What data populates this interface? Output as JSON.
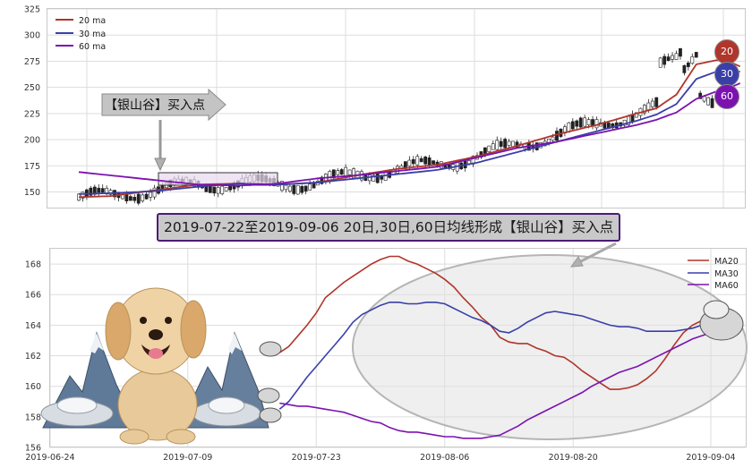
{
  "colors": {
    "ma20": "#b0352a",
    "ma30": "#3a3fa8",
    "ma60": "#7b12b0",
    "up": "#ffffff",
    "down": "#222222",
    "grid": "#dddddd"
  },
  "top": {
    "legend": [
      "20 ma",
      "30 ma",
      "60 ma"
    ],
    "ylim": [
      135,
      325
    ],
    "yticks": [
      150,
      175,
      200,
      225,
      250,
      275,
      300,
      325
    ],
    "callout_label": "【银山谷】买入点",
    "badges": [
      "20",
      "30",
      "60"
    ]
  },
  "banner": "2019-07-22至2019-09-06 20日,30日,60日均线形成【银山谷】买入点",
  "chart_data": [
    {
      "type": "line",
      "panel": "price_ma",
      "n_bars": 160,
      "ylim": [
        135,
        325
      ],
      "legend_placement": "top-left",
      "grid": true,
      "series": [
        {
          "name": "20 ma",
          "anchors": [
            [
              0,
              145
            ],
            [
              8,
              146
            ],
            [
              20,
              152
            ],
            [
              30,
              157
            ],
            [
              40,
              158
            ],
            [
              50,
              157
            ],
            [
              60,
              159
            ],
            [
              70,
              166
            ],
            [
              80,
              172
            ],
            [
              90,
              176
            ],
            [
              100,
              184
            ],
            [
              110,
              194
            ],
            [
              120,
              205
            ],
            [
              130,
              214
            ],
            [
              140,
              225
            ],
            [
              145,
              230
            ],
            [
              150,
              243
            ],
            [
              155,
              272
            ],
            [
              160,
              276
            ],
            [
              163,
              275
            ],
            [
              166,
              270
            ]
          ]
        },
        {
          "name": "30 ma",
          "anchors": [
            [
              0,
              148
            ],
            [
              10,
              149
            ],
            [
              20,
              151
            ],
            [
              30,
              155
            ],
            [
              40,
              158
            ],
            [
              50,
              157
            ],
            [
              60,
              159
            ],
            [
              70,
              163
            ],
            [
              80,
              167
            ],
            [
              90,
              171
            ],
            [
              100,
              178
            ],
            [
              110,
              188
            ],
            [
              120,
              198
            ],
            [
              130,
              208
            ],
            [
              140,
              218
            ],
            [
              145,
              224
            ],
            [
              150,
              234
            ],
            [
              155,
              258
            ],
            [
              160,
              265
            ],
            [
              163,
              266
            ],
            [
              166,
              265
            ]
          ]
        },
        {
          "name": "60 ma",
          "anchors": [
            [
              0,
              169
            ],
            [
              10,
              165
            ],
            [
              20,
              161
            ],
            [
              30,
              157
            ],
            [
              40,
              156
            ],
            [
              50,
              158
            ],
            [
              60,
              163
            ],
            [
              70,
              166
            ],
            [
              80,
              170
            ],
            [
              90,
              174
            ],
            [
              100,
              183
            ],
            [
              110,
              192
            ],
            [
              120,
              198
            ],
            [
              130,
              206
            ],
            [
              140,
              214
            ],
            [
              145,
              219
            ],
            [
              150,
              226
            ],
            [
              155,
              239
            ],
            [
              160,
              246
            ],
            [
              163,
              249
            ],
            [
              166,
              254
            ]
          ]
        }
      ]
    },
    {
      "type": "line",
      "panel": "ma_zoom",
      "x_start": "2019-06-24",
      "xticks": [
        "2019-06-24",
        "2019-07-09",
        "2019-07-23",
        "2019-08-06",
        "2019-08-20",
        "2019-09-04"
      ],
      "ylim": [
        156,
        169
      ],
      "yticks": [
        156,
        158,
        160,
        162,
        164,
        166,
        168
      ],
      "legend_placement": "top-right",
      "grid": true,
      "series": [
        {
          "name": "MA20",
          "x": [
            25,
            26,
            27,
            28,
            29,
            30,
            31,
            32,
            33,
            34,
            35,
            36,
            37,
            38,
            39,
            40,
            41,
            42,
            43,
            44,
            45,
            46,
            47,
            48,
            49,
            50,
            51,
            52,
            53,
            54,
            55,
            56,
            57,
            58,
            59,
            60,
            61,
            62,
            63,
            64,
            65,
            66,
            67,
            68,
            69,
            70,
            71,
            72,
            73,
            74
          ],
          "y": [
            162.2,
            162.6,
            163.3,
            164.0,
            164.8,
            165.8,
            166.3,
            166.8,
            167.2,
            167.6,
            168.0,
            168.3,
            168.5,
            168.5,
            168.2,
            168.0,
            167.7,
            167.4,
            167.0,
            166.5,
            165.8,
            165.2,
            164.5,
            164.0,
            163.2,
            162.9,
            162.8,
            162.8,
            162.5,
            162.3,
            162.0,
            161.9,
            161.5,
            161.0,
            160.6,
            160.2,
            159.8,
            159.8,
            159.9,
            160.1,
            160.5,
            161.0,
            161.8,
            162.7,
            163.5,
            164.0,
            164.3,
            164.5,
            164.6,
            164.7
          ]
        },
        {
          "name": "MA30",
          "x": [
            25,
            26,
            27,
            28,
            29,
            30,
            31,
            32,
            33,
            34,
            35,
            36,
            37,
            38,
            39,
            40,
            41,
            42,
            43,
            44,
            45,
            46,
            47,
            48,
            49,
            50,
            51,
            52,
            53,
            54,
            55,
            56,
            57,
            58,
            59,
            60,
            61,
            62,
            63,
            64,
            65,
            66,
            67,
            68,
            69,
            70,
            71,
            72,
            73,
            74
          ],
          "y": [
            158.5,
            159.0,
            159.8,
            160.6,
            161.3,
            162.0,
            162.7,
            163.4,
            164.2,
            164.7,
            165.0,
            165.3,
            165.5,
            165.5,
            165.4,
            165.4,
            165.5,
            165.5,
            165.4,
            165.1,
            164.8,
            164.5,
            164.3,
            164.0,
            163.6,
            163.5,
            163.8,
            164.2,
            164.5,
            164.8,
            164.9,
            164.8,
            164.7,
            164.6,
            164.4,
            164.2,
            164.0,
            163.9,
            163.9,
            163.8,
            163.6,
            163.6,
            163.6,
            163.6,
            163.7,
            163.8,
            164.0,
            164.2,
            164.3,
            164.4
          ]
        },
        {
          "name": "MA60",
          "x": [
            25,
            26,
            27,
            28,
            29,
            30,
            31,
            32,
            33,
            34,
            35,
            36,
            37,
            38,
            39,
            40,
            41,
            42,
            43,
            44,
            45,
            46,
            47,
            48,
            49,
            50,
            51,
            52,
            53,
            54,
            55,
            56,
            57,
            58,
            59,
            60,
            61,
            62,
            63,
            64,
            65,
            66,
            67,
            68,
            69,
            70,
            71,
            72,
            73,
            74
          ],
          "y": [
            158.9,
            158.8,
            158.7,
            158.7,
            158.6,
            158.5,
            158.4,
            158.3,
            158.1,
            157.9,
            157.7,
            157.6,
            157.3,
            157.1,
            157.0,
            157.0,
            156.9,
            156.8,
            156.7,
            156.7,
            156.6,
            156.6,
            156.6,
            156.7,
            156.8,
            157.1,
            157.4,
            157.8,
            158.1,
            158.4,
            158.7,
            159.0,
            159.3,
            159.6,
            160.0,
            160.3,
            160.6,
            160.9,
            161.1,
            161.3,
            161.6,
            161.9,
            162.2,
            162.5,
            162.8,
            163.1,
            163.3,
            163.5,
            163.6,
            163.7
          ]
        }
      ]
    }
  ]
}
